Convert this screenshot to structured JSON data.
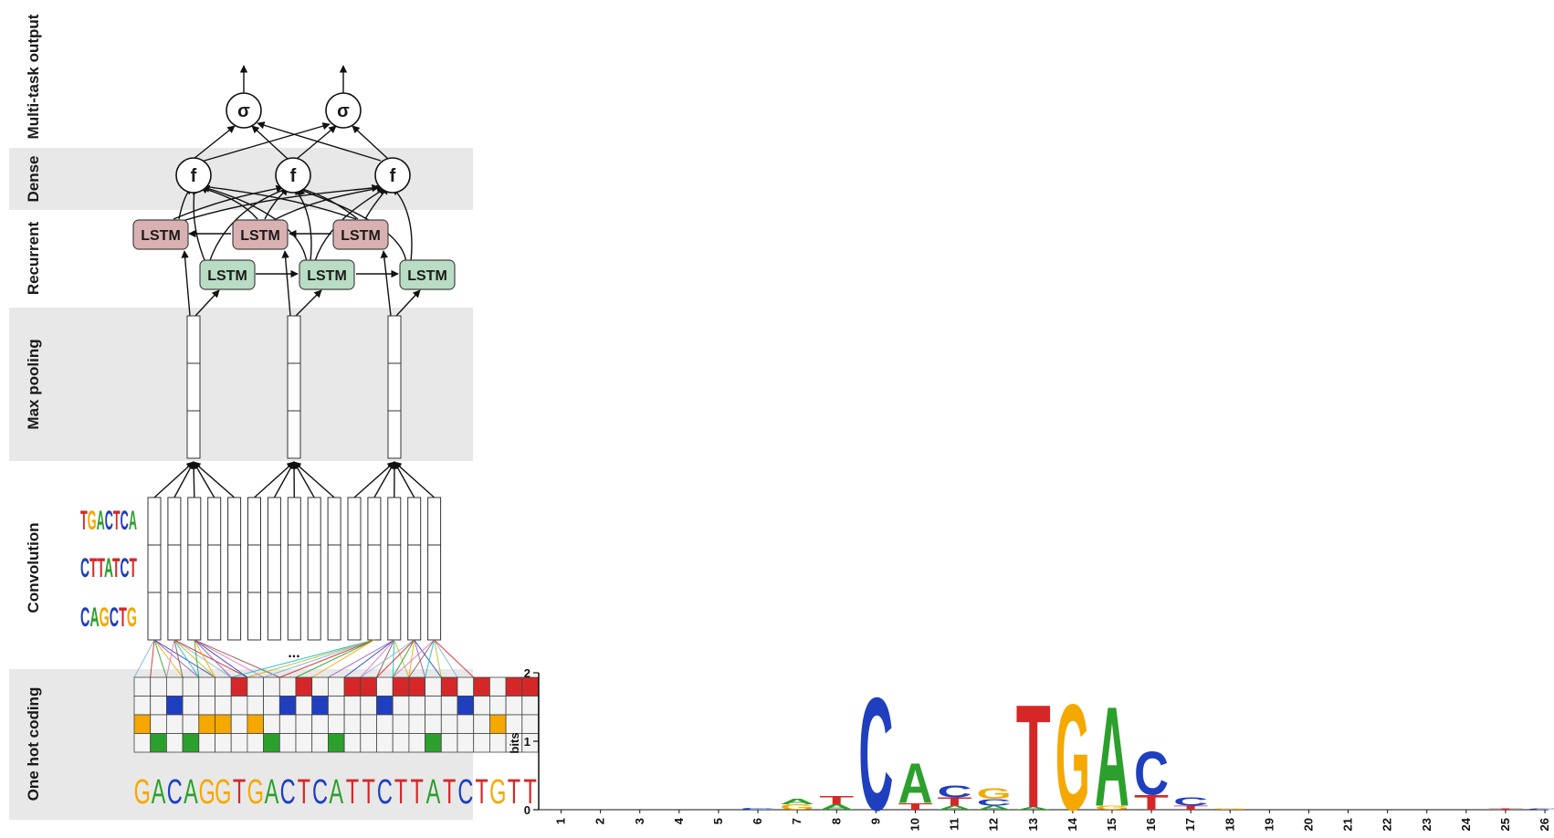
{
  "sections": [
    {
      "id": "multitask",
      "label": "Multi-task output"
    },
    {
      "id": "dense",
      "label": "Dense"
    },
    {
      "id": "recurrent",
      "label": "Recurrent"
    },
    {
      "id": "maxpool",
      "label": "Max pooling"
    },
    {
      "id": "conv",
      "label": "Convolution"
    },
    {
      "id": "onehot",
      "label": "One hot coding"
    }
  ],
  "nodes": {
    "sigma_symbol": "σ",
    "dense_symbol": "f",
    "lstm_label": "LSTM"
  },
  "ellipsis": "...",
  "colors": {
    "A": "#2ca02c",
    "C": "#1f3fbf",
    "G": "#f5a800",
    "T": "#d62728",
    "lstm_backward": "#d9b1b1",
    "lstm_forward": "#b9dcc4",
    "band": "#e8e8e8"
  },
  "input_sequence": "GACAGGTGACTCATTCTTATCTGTT",
  "conv_motifs": [
    "TGACTCA",
    "CTTATCT",
    "CAGCTG"
  ],
  "chart_data": {
    "type": "sequence-logo",
    "ylabel": "bits",
    "ylim": [
      0,
      2
    ],
    "yticks": [
      "0",
      "1",
      "2"
    ],
    "positions": [
      "1",
      "2",
      "3",
      "4",
      "5",
      "6",
      "7",
      "8",
      "9",
      "10",
      "11",
      "12",
      "13",
      "14",
      "15",
      "16",
      "17",
      "18",
      "19",
      "20",
      "21",
      "22",
      "23",
      "24",
      "25",
      "26"
    ],
    "stacks": [
      [],
      [],
      [],
      [],
      [],
      [
        {
          "letter": "C",
          "bits": 0.03
        }
      ],
      [
        {
          "letter": "G",
          "bits": 0.08
        },
        {
          "letter": "A",
          "bits": 0.08
        }
      ],
      [
        {
          "letter": "T",
          "bits": 0.12
        },
        {
          "letter": "A",
          "bits": 0.08
        }
      ],
      [
        {
          "letter": "C",
          "bits": 1.7
        }
      ],
      [
        {
          "letter": "A",
          "bits": 0.6
        },
        {
          "letter": "T",
          "bits": 0.1
        }
      ],
      [
        {
          "letter": "C",
          "bits": 0.18
        },
        {
          "letter": "T",
          "bits": 0.12
        },
        {
          "letter": "A",
          "bits": 0.06
        }
      ],
      [
        {
          "letter": "G",
          "bits": 0.16
        },
        {
          "letter": "C",
          "bits": 0.1
        },
        {
          "letter": "A",
          "bits": 0.06
        }
      ],
      [
        {
          "letter": "T",
          "bits": 1.55
        },
        {
          "letter": "A",
          "bits": 0.04
        }
      ],
      [
        {
          "letter": "G",
          "bits": 1.6
        }
      ],
      [
        {
          "letter": "A",
          "bits": 1.5
        },
        {
          "letter": "G",
          "bits": 0.06
        }
      ],
      [
        {
          "letter": "C",
          "bits": 0.65
        },
        {
          "letter": "T",
          "bits": 0.22
        }
      ],
      [
        {
          "letter": "C",
          "bits": 0.12
        },
        {
          "letter": "T",
          "bits": 0.06
        }
      ],
      [
        {
          "letter": "G",
          "bits": 0.02
        }
      ],
      [],
      [],
      [],
      [],
      [],
      [],
      [
        {
          "letter": "T",
          "bits": 0.02
        }
      ],
      [
        {
          "letter": "C",
          "bits": 0.02
        }
      ]
    ]
  }
}
